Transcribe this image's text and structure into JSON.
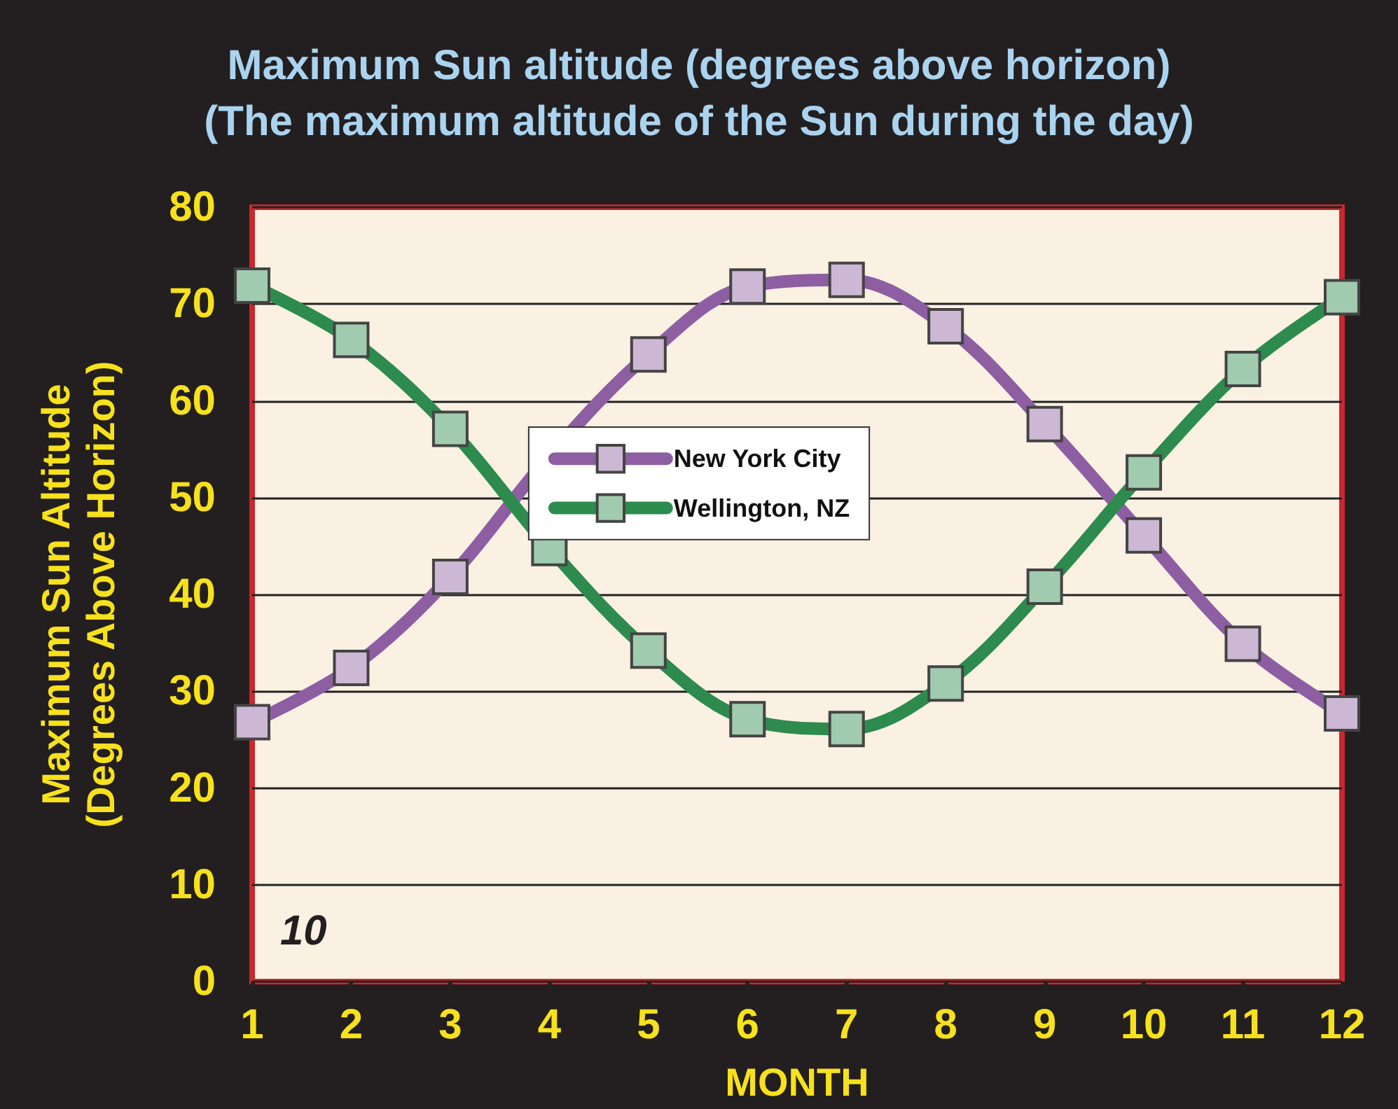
{
  "chart_data": {
    "type": "line",
    "title": "Maximum Sun altitude (degrees above horizon)",
    "subtitle": "(The maximum altitude of the Sun during the day)",
    "xlabel": "MONTH",
    "ylabel": "Maximum Sun Altitude\n(Degrees Above Horizon)",
    "x": [
      1,
      2,
      3,
      4,
      5,
      6,
      7,
      8,
      9,
      10,
      11,
      12
    ],
    "series": [
      {
        "name": "New York City",
        "color": "#8e5ea2",
        "values": [
          26.8,
          32.4,
          41.8,
          54.3,
          64.8,
          71.8,
          72.5,
          67.7,
          57.6,
          46.1,
          34.9,
          27.7
        ]
      },
      {
        "name": "Wellington, NZ",
        "color": "#2e8b4e",
        "values": [
          71.9,
          66.3,
          57.1,
          44.8,
          34.2,
          27.1,
          26.1,
          30.8,
          40.8,
          52.6,
          63.3,
          70.7
        ]
      }
    ],
    "xlim": [
      1,
      12
    ],
    "xticks": [
      1,
      2,
      3,
      4,
      5,
      6,
      7,
      8,
      9,
      10,
      11,
      12
    ],
    "ylim": [
      0,
      80
    ],
    "yticks": [
      0,
      10,
      20,
      30,
      40,
      50,
      60,
      70,
      80
    ],
    "grid": "y",
    "legend": "center",
    "marker": "square",
    "line_style": "solid",
    "annotations": [
      "10"
    ]
  }
}
